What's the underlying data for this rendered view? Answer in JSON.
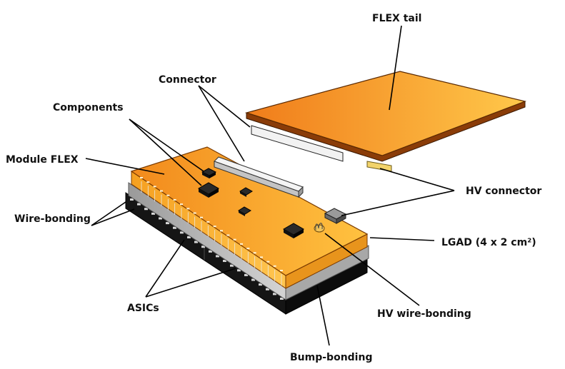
{
  "labels": {
    "flex_tail": "FLEX tail",
    "connector": "Connector",
    "components": "Components",
    "module_flex": "Module FLEX",
    "wire_bonding": "Wire-bonding",
    "hv_connector": "HV connector",
    "lgad": "LGAD  (4 x 2 cm²)",
    "asics": "ASICs",
    "hv_wire_bonding": "HV wire-bonding",
    "bump_bonding": "Bump-bonding"
  },
  "colors": {
    "flex_orange_light": "#FFC84A",
    "flex_orange_dark": "#F07C1A",
    "flex_edge": "#E68A10",
    "sensor_grey": "#C8C8C8",
    "asic_black": "#1A1A1A",
    "connector_white": "#F2F2F2",
    "hv_pad": "#F2D36A"
  }
}
